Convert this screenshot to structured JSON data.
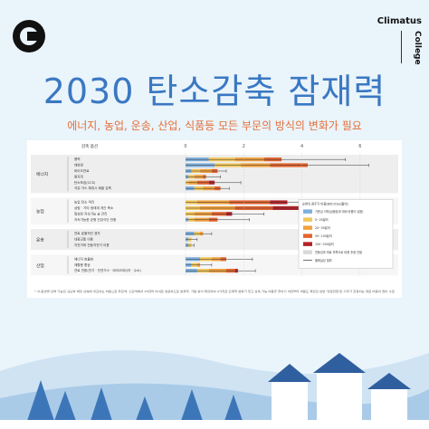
{
  "brand": {
    "name_top": "Climatus",
    "name_side": "College"
  },
  "header": {
    "title": "2030 탄소감축 잠재력",
    "subtitle": "에너지, 농업, 운송, 산업, 식품등 모든 부문의 방식의 변화가 필요"
  },
  "chart_data": {
    "type": "bar",
    "orientation": "horizontal-stacked",
    "column_header": "감축 옵션",
    "xlim": [
      0,
      7
    ],
    "xticks": [
      0,
      2,
      4,
      6
    ],
    "sectors": [
      {
        "name": "에너지",
        "options": [
          {
            "label": "풍력",
            "segments": [
              0.8,
              0.9,
              1.0,
              0.6,
              0.0
            ],
            "whisker": 5.5
          },
          {
            "label": "태양광",
            "segments": [
              1.0,
              0.9,
              1.0,
              1.3,
              0.0
            ],
            "whisker": 6.3
          },
          {
            "label": "바이오연료",
            "segments": [
              0.2,
              0.3,
              0.4,
              0.2,
              0.0
            ],
            "whisker": 1.4
          },
          {
            "label": "원자력",
            "segments": [
              0.1,
              0.2,
              0.3,
              0.1,
              0.0
            ],
            "whisker": 1.2
          },
          {
            "label": "탄소포집(CCS)",
            "segments": [
              0.0,
              0.1,
              0.3,
              0.4,
              0.2
            ],
            "whisker": 1.9
          },
          {
            "label": "석유·가스 채취시 배출 감축",
            "segments": [
              0.3,
              0.3,
              0.4,
              0.2,
              0.0
            ],
            "whisker": 1.5
          }
        ]
      },
      {
        "name": "농업",
        "options": [
          {
            "label": "농업 탄소 격리",
            "segments": [
              0.0,
              0.4,
              1.1,
              1.4,
              0.6
            ],
            "whisker": 5.0
          },
          {
            "label": "삼림 · 기타 생태계 개간 축소",
            "segments": [
              0.0,
              0.5,
              1.2,
              1.3,
              0.9
            ],
            "whisker": 6.1
          },
          {
            "label": "형성된 지속가능 숲 관리",
            "segments": [
              0.0,
              0.3,
              0.6,
              0.5,
              0.2
            ],
            "whisker": 2.7
          },
          {
            "label": "지속가능한 균형 건강식단 전환",
            "segments": [
              0.1,
              0.2,
              0.5,
              0.3,
              0.0
            ],
            "whisker": 2.2
          }
        ]
      },
      {
        "name": "운송",
        "options": [
          {
            "label": "연료 효율적인 경차",
            "segments": [
              0.3,
              0.2,
              0.1,
              0.0,
              0.0
            ],
            "whisker": 0.9
          },
          {
            "label": "대중교통 이용",
            "segments": [
              0.1,
              0.1,
              0.0,
              0.0,
              0.0
            ],
            "whisker": 0.4
          },
          {
            "label": "자전거와 전동자전거 이용",
            "segments": [
              0.1,
              0.1,
              0.0,
              0.0,
              0.0
            ],
            "whisker": 0.3
          }
        ]
      },
      {
        "name": "산업",
        "options": [
          {
            "label": "에너지 효율화",
            "segments": [
              0.5,
              0.4,
              0.3,
              0.2,
              0.0
            ],
            "whisker": 2.3
          },
          {
            "label": "재활용 향상",
            "segments": [
              0.2,
              0.2,
              0.1,
              0.0,
              0.0
            ],
            "whisker": 0.9
          },
          {
            "label": "연료 전환(전기 · 천연가스 · 바이오에너지 · 수소)",
            "segments": [
              0.4,
              0.4,
              0.6,
              0.3,
              0.1
            ],
            "whisker": 2.4
          }
        ]
      }
    ],
    "legend": {
      "placement": "right",
      "title": "순변의 잠주기 비용(B/tCO2eq할비)",
      "items": [
        {
          "label": "기준금 이하(금융효과 대비 비용이 낮음)",
          "color": "#7fb0dc"
        },
        {
          "label": "0~20달러",
          "color": "#f2c85c"
        },
        {
          "label": "20~50달러",
          "color": "#f0a23f"
        },
        {
          "label": "50~100달러",
          "color": "#e4642f"
        },
        {
          "label": "100~200달러",
          "color": "#b3232a"
        },
        {
          "label": "연동성과 피로 부족으로 비용 추정 안됨",
          "color": "#d9d9d9"
        },
        {
          "label": "불확실성 범위",
          "color": "#333333"
        }
      ]
    },
    "footnote": "* 각 옵션별 선택 가능한 규모와 해당 감축에 필요되는 비용으로 파란색, 노란색에서 20달러 이내로 성공하므로 효율적, 가용 롤이 제한되며 4가지로 단계적 변화가 있고 감축 가능 비용을 줄이기 이전부터 비용도 제한한 반면 '연료전환'은 기후가 진정되는 대로 비용이 없어 수로"
  },
  "colors": {
    "accent": "#3a78c2",
    "subtitle": "#e4703a",
    "card_bg": "#ffffff",
    "band": "#eeeeee"
  }
}
